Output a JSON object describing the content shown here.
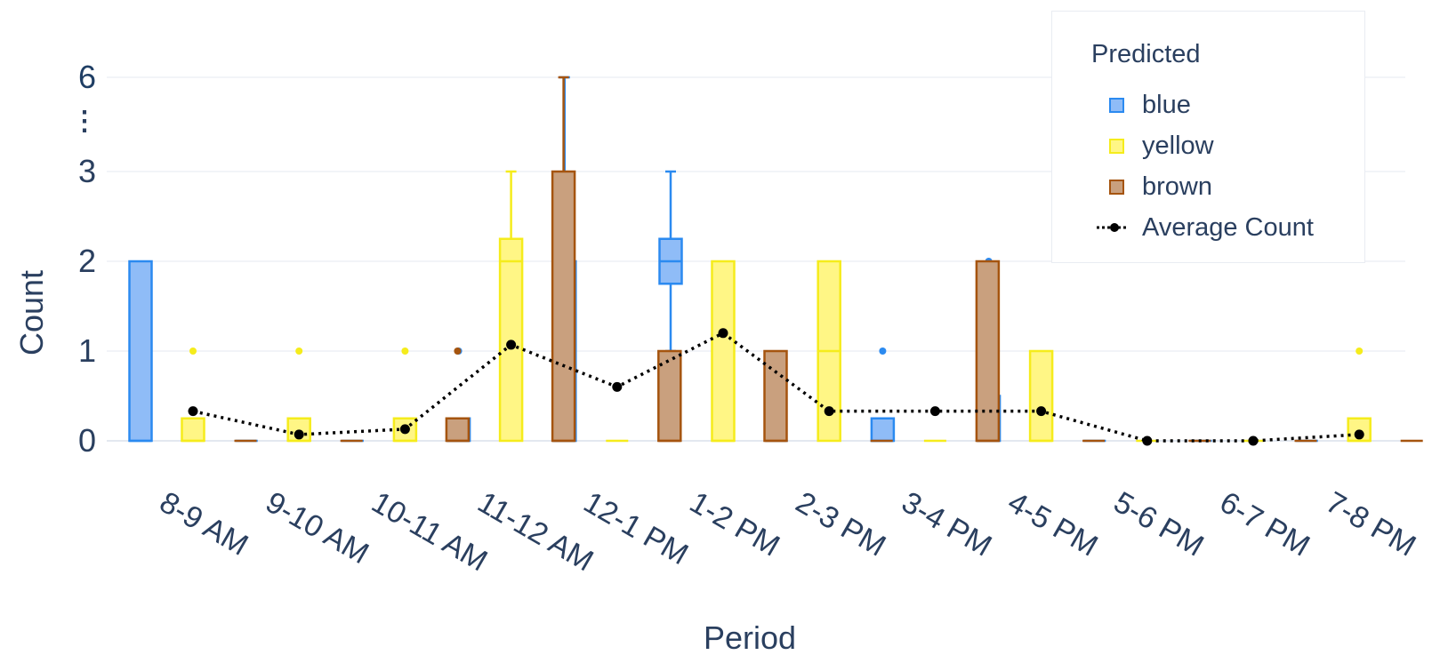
{
  "chart_data": {
    "type": "box",
    "xlabel": "Period",
    "ylabel": "Count",
    "y_ticks": [
      0,
      1,
      2,
      3,
      6
    ],
    "y_break": "⋮",
    "categories": [
      "8-9 AM",
      "9-10 AM",
      "10-11 AM",
      "11-12 AM",
      "12-1 PM",
      "1-2 PM",
      "2-3 PM",
      "3-4 PM",
      "4-5 PM",
      "5-6 PM",
      "6-7 PM",
      "7-8 PM"
    ],
    "legend_title": "Predicted",
    "series": [
      {
        "name": "blue",
        "fill": "#8fbcf7",
        "stroke": "#2b8af0",
        "boxes": [
          {
            "q1": 0,
            "median": 0,
            "q3": 2,
            "whisker_low": 0,
            "whisker_high": 2,
            "outliers": []
          },
          {
            "q1": 0,
            "median": 0,
            "q3": 0,
            "whisker_low": 0,
            "whisker_high": 0,
            "outliers": []
          },
          {
            "q1": 0,
            "median": 0,
            "q3": 0,
            "whisker_low": 0,
            "whisker_high": 0,
            "outliers": []
          },
          {
            "q1": 0,
            "median": 0,
            "q3": 0.25,
            "whisker_low": 0,
            "whisker_high": 0.25,
            "outliers": [
              1
            ]
          },
          {
            "q1": 0,
            "median": 0,
            "q3": 2,
            "whisker_low": 0,
            "whisker_high": 6,
            "outliers": []
          },
          {
            "q1": 1.75,
            "median": 2,
            "q3": 2.25,
            "whisker_low": 1,
            "whisker_high": 3,
            "outliers": []
          },
          {
            "q1": 0,
            "median": 0,
            "q3": 0,
            "whisker_low": 0,
            "whisker_high": 0,
            "outliers": []
          },
          {
            "q1": 0,
            "median": 0,
            "q3": 0.25,
            "whisker_low": 0,
            "whisker_high": 0.25,
            "outliers": [
              1
            ]
          },
          {
            "q1": 0,
            "median": 0,
            "q3": 0.5,
            "whisker_low": 0,
            "whisker_high": 0.5,
            "outliers": [
              2
            ]
          },
          {
            "q1": 0,
            "median": 0,
            "q3": 0,
            "whisker_low": 0,
            "whisker_high": 0,
            "outliers": []
          },
          {
            "q1": 0,
            "median": 0,
            "q3": 0,
            "whisker_low": 0,
            "whisker_high": 0,
            "outliers": []
          },
          {
            "q1": 0,
            "median": 0,
            "q3": 0,
            "whisker_low": 0,
            "whisker_high": 0,
            "outliers": []
          }
        ]
      },
      {
        "name": "yellow",
        "fill": "#fff685",
        "stroke": "#f5ec1c",
        "boxes": [
          {
            "q1": 0,
            "median": 0,
            "q3": 0.25,
            "whisker_low": 0,
            "whisker_high": 0.25,
            "outliers": [
              1
            ]
          },
          {
            "q1": 0,
            "median": 0,
            "q3": 0.25,
            "whisker_low": 0,
            "whisker_high": 0.25,
            "outliers": [
              1
            ]
          },
          {
            "q1": 0,
            "median": 0,
            "q3": 0.25,
            "whisker_low": 0,
            "whisker_high": 0.25,
            "outliers": [
              1
            ]
          },
          {
            "q1": 0,
            "median": 2,
            "q3": 2.25,
            "whisker_low": 0,
            "whisker_high": 3,
            "outliers": []
          },
          {
            "q1": 0,
            "median": 0,
            "q3": 0,
            "whisker_low": 0,
            "whisker_high": 0,
            "outliers": []
          },
          {
            "q1": 0,
            "median": 0,
            "q3": 2,
            "whisker_low": 0,
            "whisker_high": 2,
            "outliers": []
          },
          {
            "q1": 0,
            "median": 1,
            "q3": 2,
            "whisker_low": 0,
            "whisker_high": 2,
            "outliers": []
          },
          {
            "q1": 0,
            "median": 0,
            "q3": 0,
            "whisker_low": 0,
            "whisker_high": 0,
            "outliers": []
          },
          {
            "q1": 0,
            "median": 0,
            "q3": 1,
            "whisker_low": 0,
            "whisker_high": 1,
            "outliers": []
          },
          {
            "q1": 0,
            "median": 0,
            "q3": 0,
            "whisker_low": 0,
            "whisker_high": 0,
            "outliers": []
          },
          {
            "q1": 0,
            "median": 0,
            "q3": 0,
            "whisker_low": 0,
            "whisker_high": 0,
            "outliers": []
          },
          {
            "q1": 0,
            "median": 0,
            "q3": 0.25,
            "whisker_low": 0,
            "whisker_high": 0.25,
            "outliers": [
              1
            ]
          }
        ]
      },
      {
        "name": "brown",
        "fill": "#c9a07e",
        "stroke": "#a5540f",
        "boxes": [
          {
            "q1": 0,
            "median": 0,
            "q3": 0,
            "whisker_low": 0,
            "whisker_high": 0,
            "outliers": []
          },
          {
            "q1": 0,
            "median": 0,
            "q3": 0,
            "whisker_low": 0,
            "whisker_high": 0,
            "outliers": []
          },
          {
            "q1": 0,
            "median": 0,
            "q3": 0.25,
            "whisker_low": 0,
            "whisker_high": 0.25,
            "outliers": [
              1
            ]
          },
          {
            "q1": 0,
            "median": 0,
            "q3": 3,
            "whisker_low": 0,
            "whisker_high": 6,
            "outliers": []
          },
          {
            "q1": 0,
            "median": 0,
            "q3": 1,
            "whisker_low": 0,
            "whisker_high": 1,
            "outliers": []
          },
          {
            "q1": 0,
            "median": 0,
            "q3": 1,
            "whisker_low": 0,
            "whisker_high": 1,
            "outliers": []
          },
          {
            "q1": 0,
            "median": 0,
            "q3": 0,
            "whisker_low": 0,
            "whisker_high": 0,
            "outliers": []
          },
          {
            "q1": 0,
            "median": 0,
            "q3": 2,
            "whisker_low": 0,
            "whisker_high": 2,
            "outliers": []
          },
          {
            "q1": 0,
            "median": 0,
            "q3": 0,
            "whisker_low": 0,
            "whisker_high": 0,
            "outliers": []
          },
          {
            "q1": 0,
            "median": 0,
            "q3": 0,
            "whisker_low": 0,
            "whisker_high": 0,
            "outliers": []
          },
          {
            "q1": 0,
            "median": 0,
            "q3": 0,
            "whisker_low": 0,
            "whisker_high": 0,
            "outliers": []
          },
          {
            "q1": 0,
            "median": 0,
            "q3": 0,
            "whisker_low": 0,
            "whisker_high": 0,
            "outliers": []
          }
        ]
      }
    ],
    "average": {
      "name": "Average Count",
      "color": "#000000",
      "values": [
        0.33,
        0.07,
        0.13,
        1.07,
        0.6,
        1.2,
        0.33,
        0.33,
        0.33,
        0,
        0,
        0.07
      ]
    }
  }
}
